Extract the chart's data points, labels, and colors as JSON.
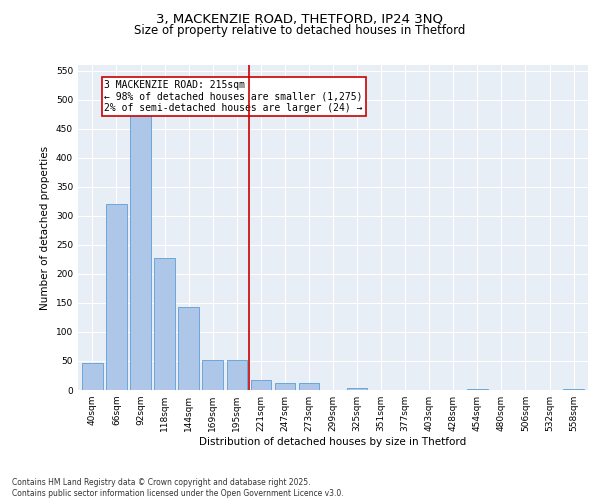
{
  "title_line1": "3, MACKENZIE ROAD, THETFORD, IP24 3NQ",
  "title_line2": "Size of property relative to detached houses in Thetford",
  "xlabel": "Distribution of detached houses by size in Thetford",
  "ylabel": "Number of detached properties",
  "bins": [
    "40sqm",
    "66sqm",
    "92sqm",
    "118sqm",
    "144sqm",
    "169sqm",
    "195sqm",
    "221sqm",
    "247sqm",
    "273sqm",
    "299sqm",
    "325sqm",
    "351sqm",
    "377sqm",
    "403sqm",
    "428sqm",
    "454sqm",
    "480sqm",
    "506sqm",
    "532sqm",
    "558sqm"
  ],
  "values": [
    47,
    320,
    510,
    228,
    143,
    52,
    52,
    18,
    12,
    12,
    0,
    4,
    0,
    0,
    0,
    0,
    1,
    0,
    0,
    0,
    1
  ],
  "bar_color": "#aec6e8",
  "bar_edgecolor": "#5a9fd4",
  "vline_x": 6.5,
  "vline_color": "#cc0000",
  "annotation_text": "3 MACKENZIE ROAD: 215sqm\n← 98% of detached houses are smaller (1,275)\n2% of semi-detached houses are larger (24) →",
  "annotation_box_color": "#cc0000",
  "background_color": "#e8eef5",
  "ylim": [
    0,
    560
  ],
  "yticks": [
    0,
    50,
    100,
    150,
    200,
    250,
    300,
    350,
    400,
    450,
    500,
    550
  ],
  "footer_text": "Contains HM Land Registry data © Crown copyright and database right 2025.\nContains public sector information licensed under the Open Government Licence v3.0.",
  "title_fontsize": 9.5,
  "subtitle_fontsize": 8.5,
  "axis_label_fontsize": 7.5,
  "tick_fontsize": 6.5,
  "annotation_fontsize": 7,
  "footer_fontsize": 5.5
}
